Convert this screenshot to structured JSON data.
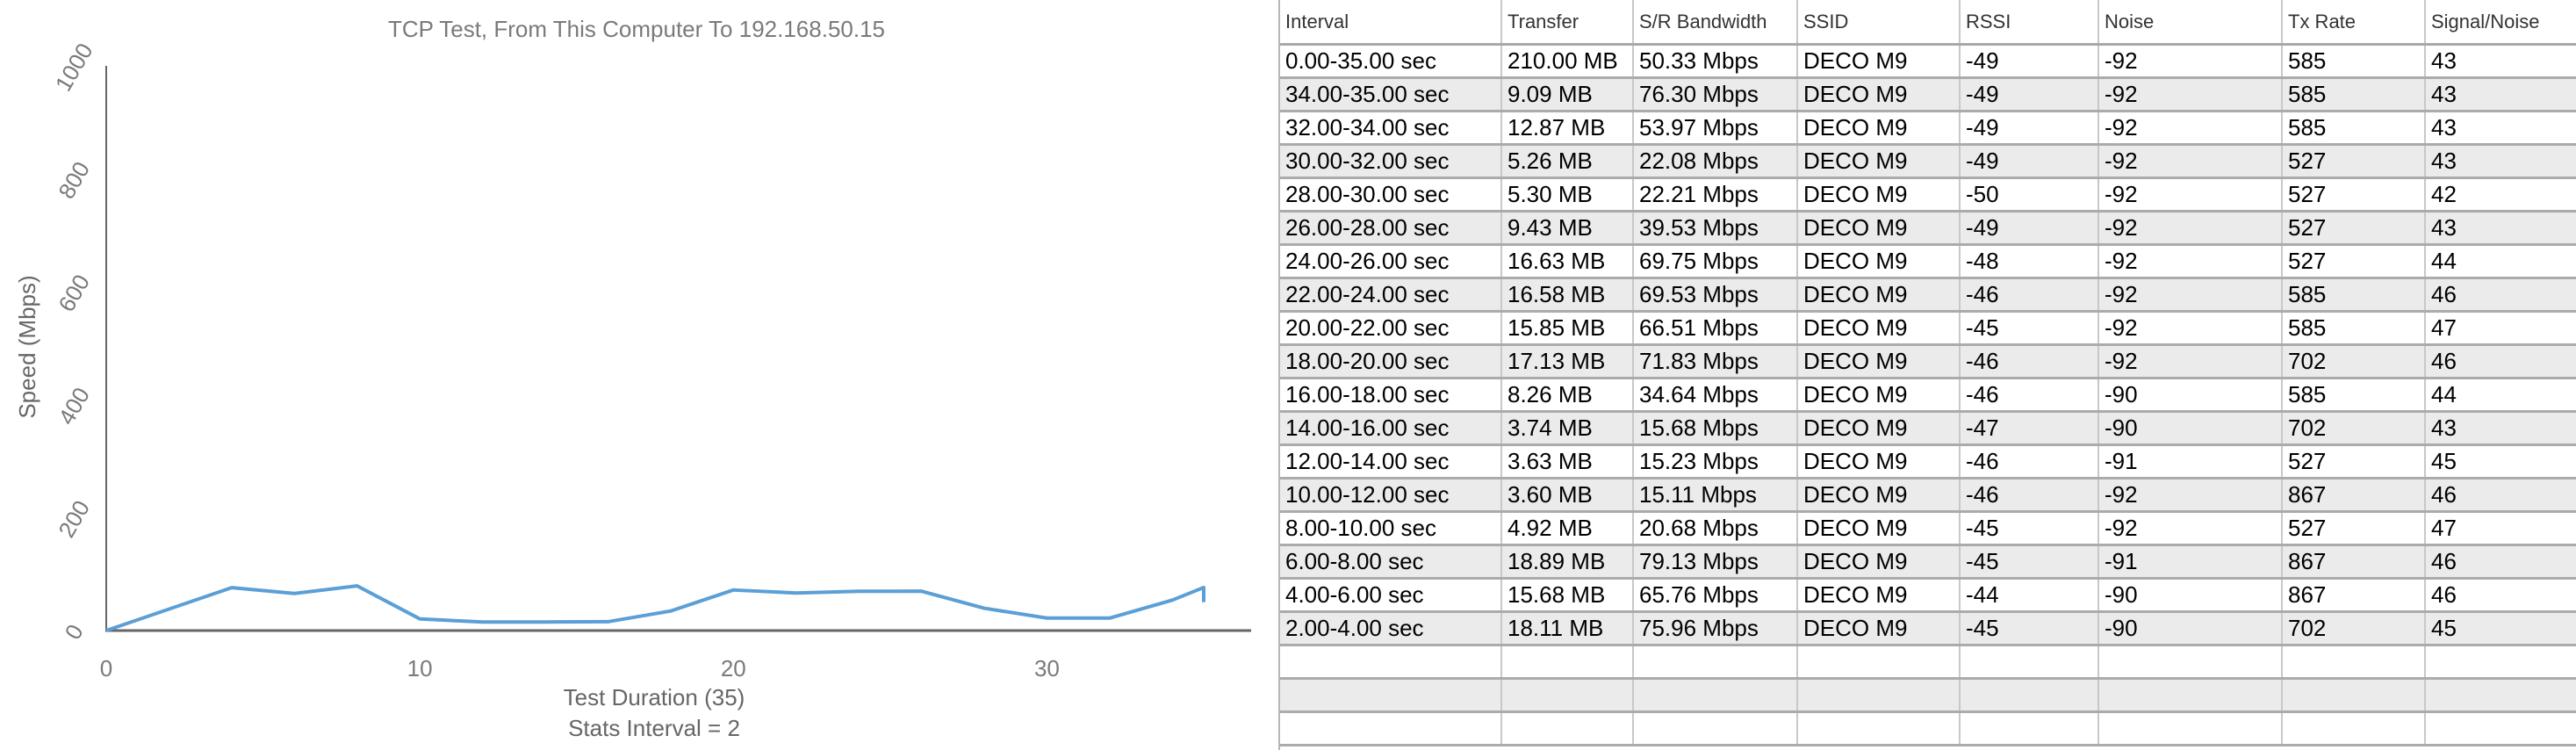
{
  "chart_data": {
    "type": "line",
    "title": "TCP Test,  From This Computer To 192.168.50.15",
    "xlabel": "Test Duration (35)",
    "xlabel2": "Stats Interval = 2",
    "ylabel": "Speed (Mbps)",
    "xlim": [
      0,
      35
    ],
    "ylim": [
      0,
      1000
    ],
    "xticks": [
      "0",
      "10",
      "20",
      "30"
    ],
    "yticks": [
      "0",
      "200",
      "400",
      "600",
      "800",
      "1000"
    ],
    "grid": false,
    "line_color": "#5b9fd6",
    "x": [
      0,
      4,
      6,
      8,
      10,
      12,
      14,
      16,
      18,
      20,
      22,
      24,
      26,
      28,
      30,
      32,
      34,
      35,
      35
    ],
    "y": [
      0,
      75.96,
      65.76,
      79.13,
      20.68,
      15.11,
      15.23,
      15.68,
      34.64,
      71.83,
      66.51,
      69.53,
      69.75,
      39.53,
      22.21,
      22.08,
      53.97,
      76.3,
      50.33
    ]
  },
  "table": {
    "columns": [
      "Interval",
      "Transfer",
      "S/R Bandwidth",
      "SSID",
      "RSSI",
      "Noise",
      "Tx Rate",
      "Signal/Noise"
    ],
    "rows": [
      [
        "0.00-35.00 sec",
        "210.00 MB",
        "50.33 Mbps",
        "DECO M9",
        "-49",
        "-92",
        "585",
        "43"
      ],
      [
        "34.00-35.00 sec",
        "9.09 MB",
        "76.30 Mbps",
        "DECO M9",
        "-49",
        "-92",
        "585",
        "43"
      ],
      [
        "32.00-34.00 sec",
        "12.87 MB",
        "53.97 Mbps",
        "DECO M9",
        "-49",
        "-92",
        "585",
        "43"
      ],
      [
        "30.00-32.00 sec",
        "5.26 MB",
        "22.08 Mbps",
        "DECO M9",
        "-49",
        "-92",
        "527",
        "43"
      ],
      [
        "28.00-30.00 sec",
        "5.30 MB",
        "22.21 Mbps",
        "DECO M9",
        "-50",
        "-92",
        "527",
        "42"
      ],
      [
        "26.00-28.00 sec",
        "9.43 MB",
        "39.53 Mbps",
        "DECO M9",
        "-49",
        "-92",
        "527",
        "43"
      ],
      [
        "24.00-26.00 sec",
        "16.63 MB",
        "69.75 Mbps",
        "DECO M9",
        "-48",
        "-92",
        "527",
        "44"
      ],
      [
        "22.00-24.00 sec",
        "16.58 MB",
        "69.53 Mbps",
        "DECO M9",
        "-46",
        "-92",
        "585",
        "46"
      ],
      [
        "20.00-22.00 sec",
        "15.85 MB",
        "66.51 Mbps",
        "DECO M9",
        "-45",
        "-92",
        "585",
        "47"
      ],
      [
        "18.00-20.00 sec",
        "17.13 MB",
        "71.83 Mbps",
        "DECO M9",
        "-46",
        "-92",
        "702",
        "46"
      ],
      [
        "16.00-18.00 sec",
        "8.26 MB",
        "34.64 Mbps",
        "DECO M9",
        "-46",
        "-90",
        "585",
        "44"
      ],
      [
        "14.00-16.00 sec",
        "3.74 MB",
        "15.68 Mbps",
        "DECO M9",
        "-47",
        "-90",
        "702",
        "43"
      ],
      [
        "12.00-14.00 sec",
        "3.63 MB",
        "15.23 Mbps",
        "DECO M9",
        "-46",
        "-91",
        "527",
        "45"
      ],
      [
        "10.00-12.00 sec",
        "3.60 MB",
        "15.11 Mbps",
        "DECO M9",
        "-46",
        "-92",
        "867",
        "46"
      ],
      [
        "8.00-10.00 sec",
        "4.92 MB",
        "20.68 Mbps",
        "DECO M9",
        "-45",
        "-92",
        "527",
        "47"
      ],
      [
        "6.00-8.00 sec",
        "18.89 MB",
        "79.13 Mbps",
        "DECO M9",
        "-45",
        "-91",
        "867",
        "46"
      ],
      [
        "4.00-6.00 sec",
        "15.68 MB",
        "65.76 Mbps",
        "DECO M9",
        "-44",
        "-90",
        "867",
        "46"
      ],
      [
        "2.00-4.00 sec",
        "18.11 MB",
        "75.96 Mbps",
        "DECO M9",
        "-45",
        "-90",
        "702",
        "45"
      ]
    ],
    "empty_rows": 3
  }
}
